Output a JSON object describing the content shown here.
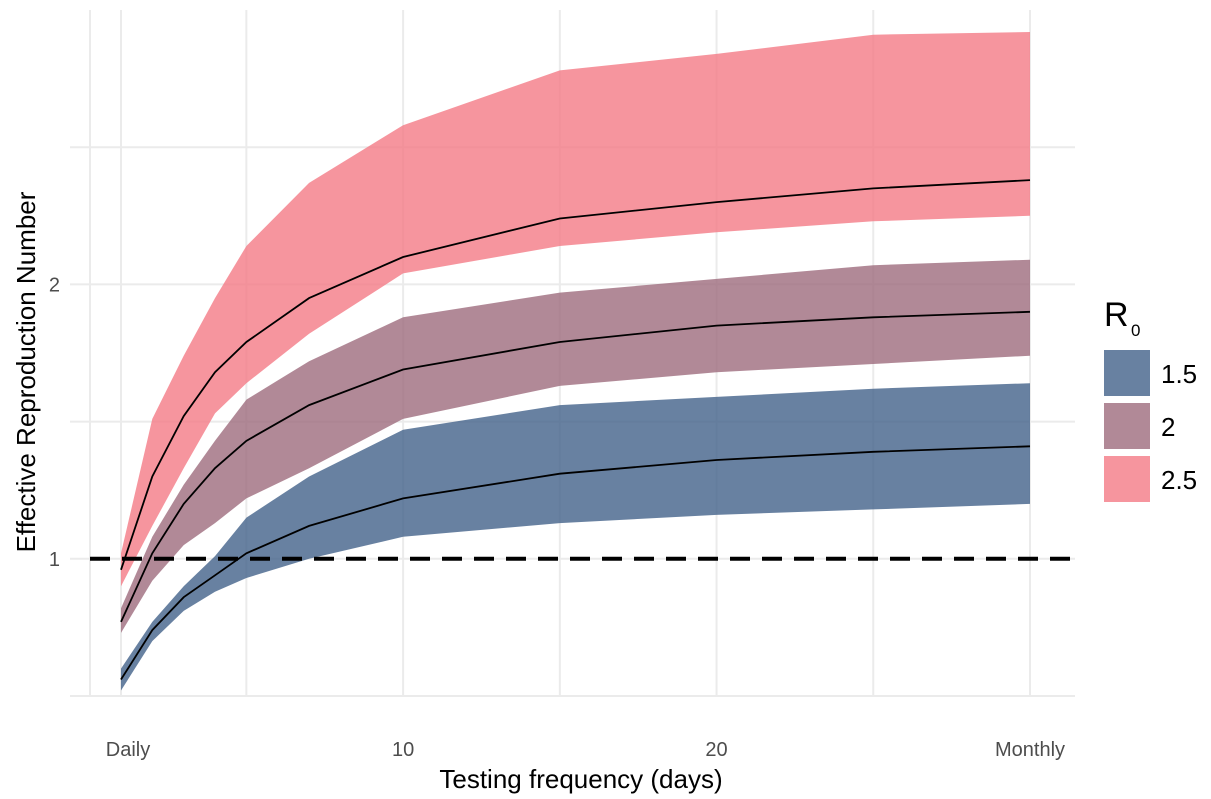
{
  "colors": {
    "grid": "#ebebeb",
    "reference_line": "#000000",
    "median_line": "#000000"
  },
  "chart_data": {
    "type": "area",
    "xlabel": "Testing frequency (days)",
    "ylabel": "Effective Reproduction Number",
    "xlim": [
      0,
      31
    ],
    "ylim": [
      0.6,
      3.1
    ],
    "x_ticks": [
      {
        "value": 1,
        "label": "Daily"
      },
      {
        "value": 10,
        "label": "10"
      },
      {
        "value": 20,
        "label": "20"
      },
      {
        "value": 30,
        "label": "Monthly"
      }
    ],
    "y_ticks": [
      {
        "value": 1,
        "label": "1"
      },
      {
        "value": 2,
        "label": "2"
      }
    ],
    "x_grid_minor": [
      5,
      15,
      25
    ],
    "y_grid_minor": [
      0.5,
      1.5,
      2.5
    ],
    "grid": true,
    "reference_line": {
      "y": 1,
      "style": "dashed"
    },
    "legend": {
      "title": "R",
      "title_subscript": "0",
      "position": "right",
      "entries": [
        "1.5",
        "2",
        "2.5"
      ]
    },
    "x": [
      1,
      2,
      3,
      4,
      5,
      7,
      10,
      15,
      20,
      25,
      30
    ],
    "series": [
      {
        "name": "1.5",
        "color": "#42618a",
        "opacity": 0.8,
        "median": [
          0.56,
          0.74,
          0.86,
          0.94,
          1.02,
          1.12,
          1.22,
          1.31,
          1.36,
          1.39,
          1.41
        ],
        "lower": [
          0.52,
          0.7,
          0.81,
          0.88,
          0.93,
          1.0,
          1.08,
          1.13,
          1.16,
          1.18,
          1.2
        ],
        "upper": [
          0.6,
          0.77,
          0.9,
          1.01,
          1.15,
          1.3,
          1.47,
          1.56,
          1.59,
          1.62,
          1.64
        ]
      },
      {
        "name": "2",
        "color": "#9e6b7d",
        "opacity": 0.8,
        "median": [
          0.77,
          1.02,
          1.2,
          1.33,
          1.43,
          1.56,
          1.69,
          1.79,
          1.85,
          1.88,
          1.9
        ],
        "lower": [
          0.73,
          0.92,
          1.05,
          1.13,
          1.22,
          1.33,
          1.51,
          1.63,
          1.68,
          1.71,
          1.74
        ],
        "upper": [
          0.82,
          1.08,
          1.27,
          1.43,
          1.58,
          1.72,
          1.88,
          1.97,
          2.02,
          2.07,
          2.09
        ]
      },
      {
        "name": "2.5",
        "color": "#f47b86",
        "opacity": 0.8,
        "median": [
          0.96,
          1.3,
          1.52,
          1.68,
          1.79,
          1.95,
          2.1,
          2.24,
          2.3,
          2.35,
          2.38
        ]
      }
    ],
    "band_2_5": {
      "lower": [
        0.9,
        1.12,
        1.33,
        1.53,
        1.64,
        1.82,
        2.04,
        2.14,
        2.19,
        2.23,
        2.25
      ],
      "upper": [
        1.02,
        1.51,
        1.74,
        1.95,
        2.14,
        2.37,
        2.58,
        2.78,
        2.84,
        2.91,
        2.92
      ]
    }
  }
}
